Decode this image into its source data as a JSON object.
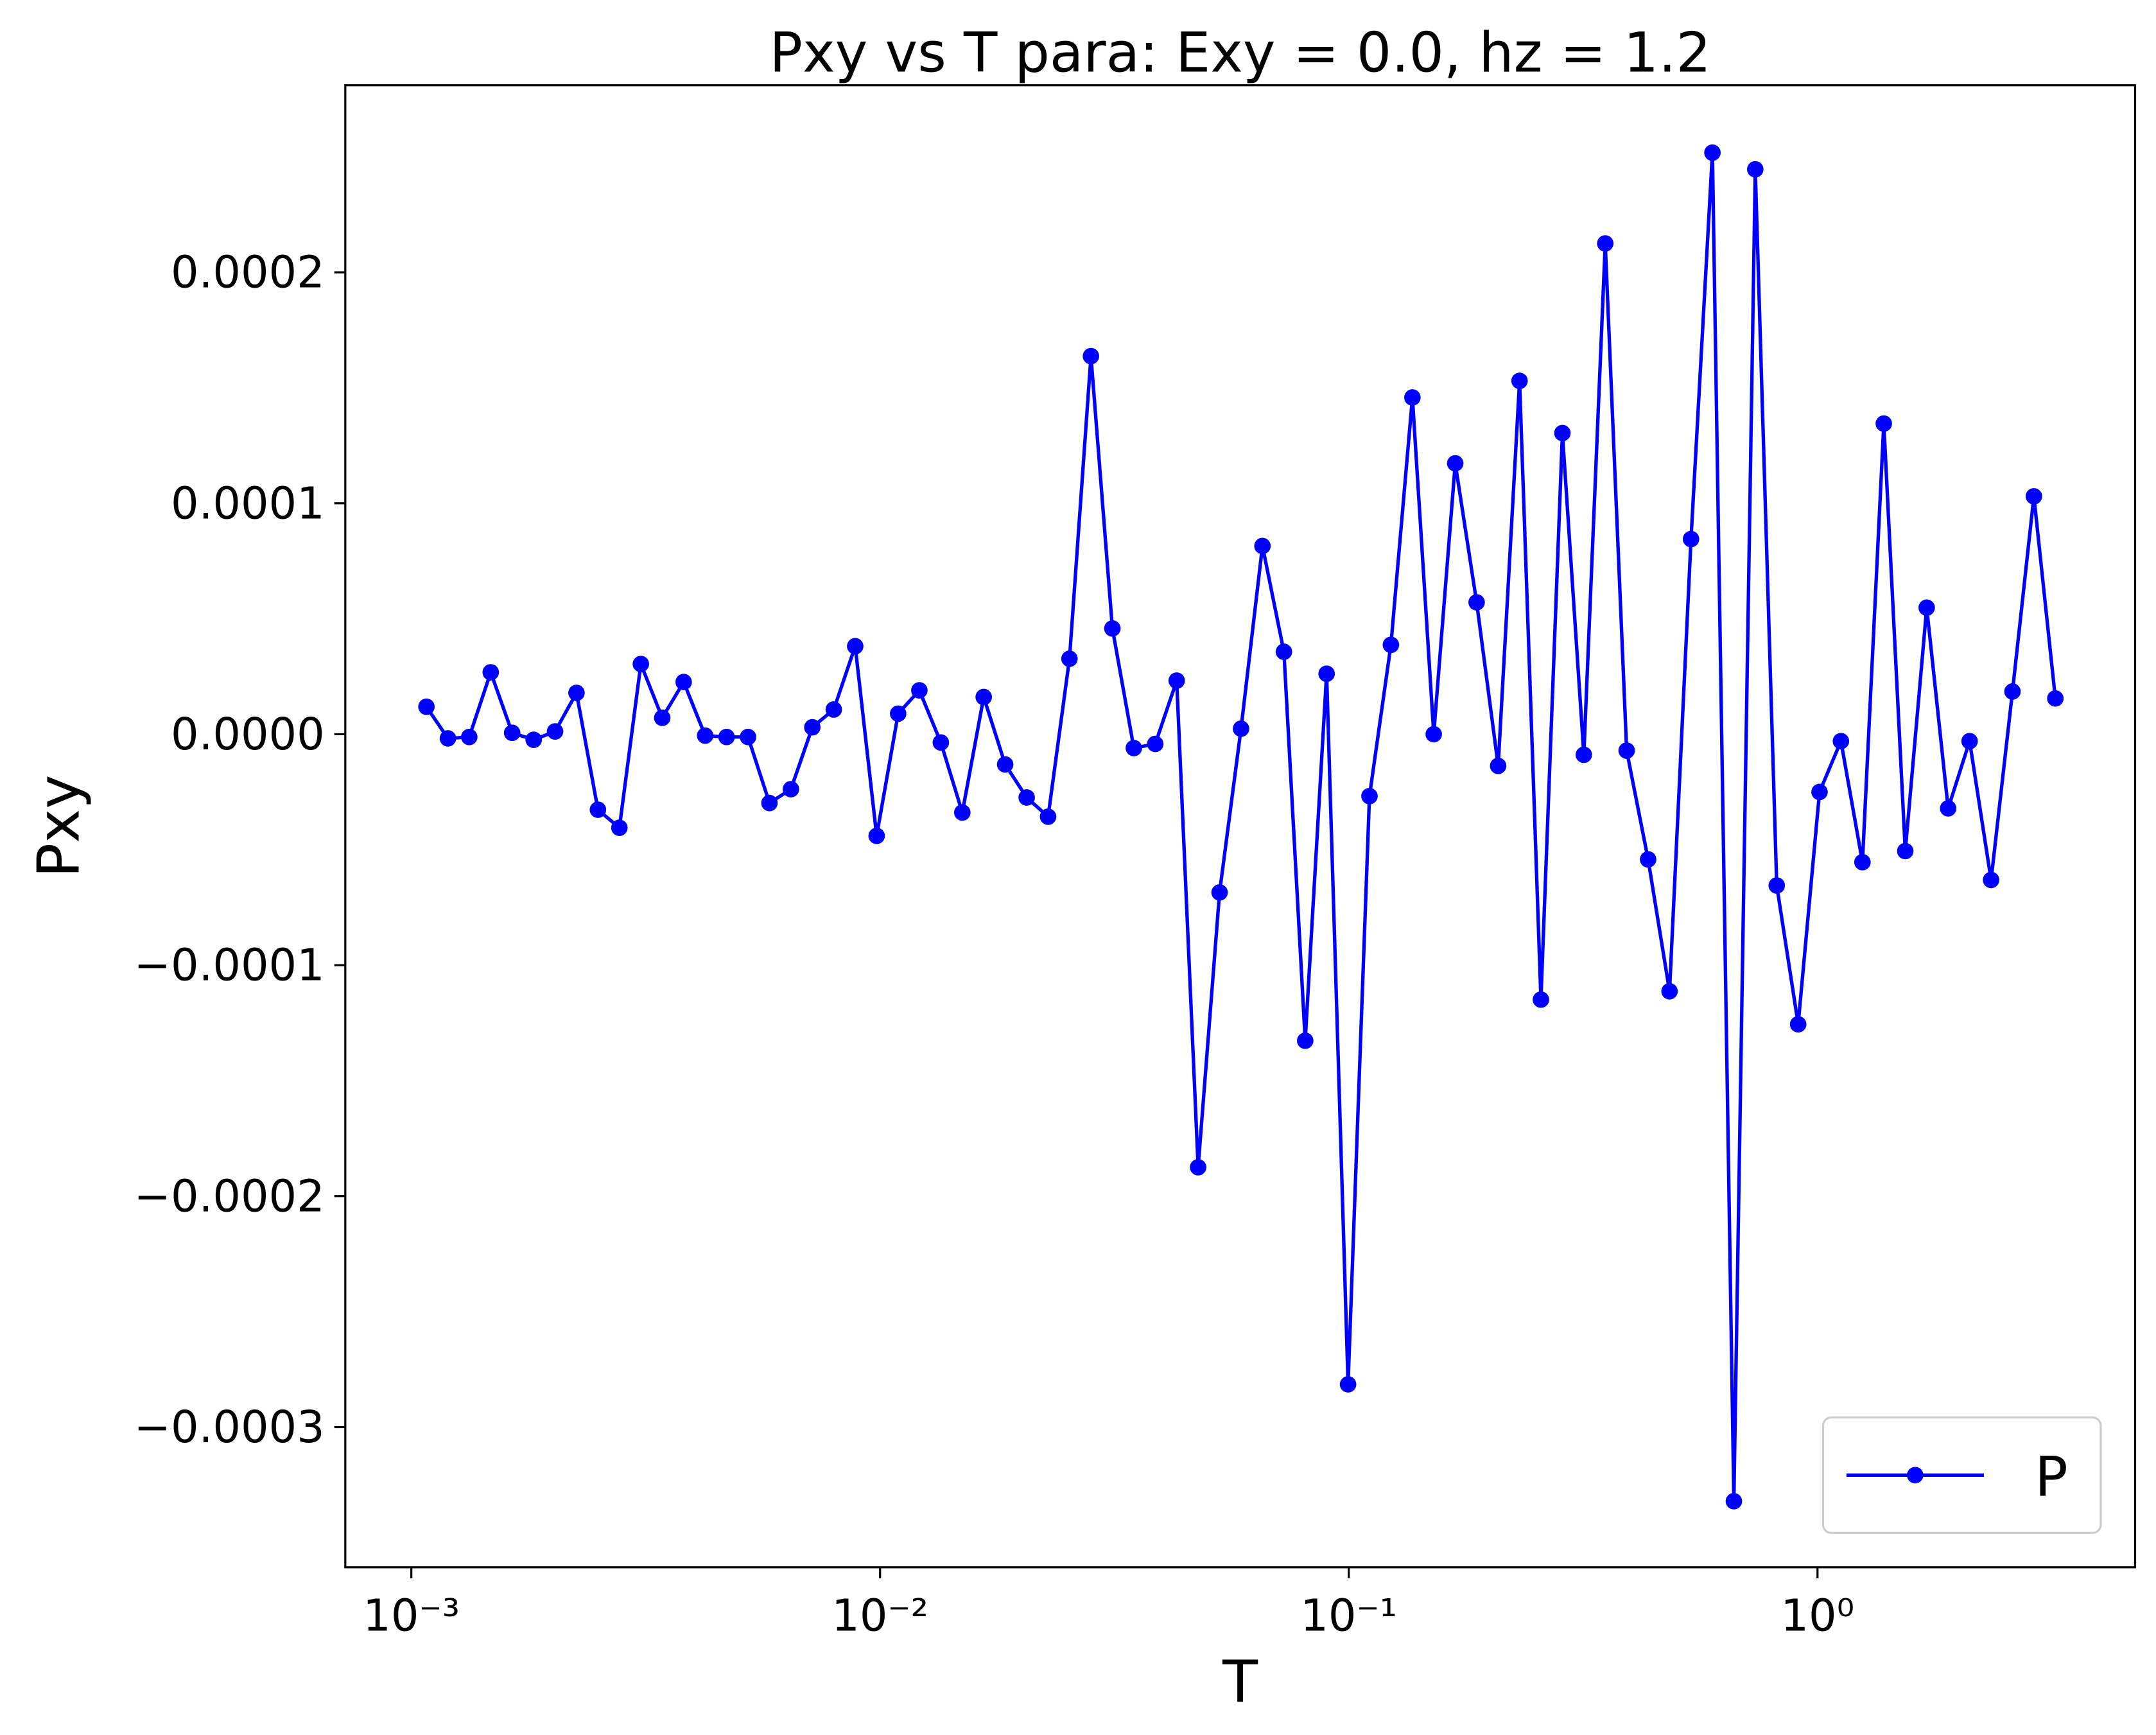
{
  "chart_data": {
    "type": "line",
    "title": "Pxy vs T para: Exy = 0.0, hz = 1.2",
    "xlabel": "T",
    "ylabel": "Pxy",
    "xscale": "log",
    "legend": "lower right",
    "grid": false,
    "xlim": [
      0.000723,
      4.76
    ],
    "ylim": [
      -0.0003607,
      0.000281
    ],
    "xticks": [
      {
        "value": 0.001,
        "label": "10⁻³"
      },
      {
        "value": 0.01,
        "label": "10⁻²"
      },
      {
        "value": 0.1,
        "label": "10⁻¹"
      },
      {
        "value": 1,
        "label": "10⁰"
      }
    ],
    "yticks": [
      {
        "value": -0.0003,
        "label": "−0.0003"
      },
      {
        "value": -0.0002,
        "label": "−0.0002"
      },
      {
        "value": -0.0001,
        "label": "−0.0001"
      },
      {
        "value": 0,
        "label": "0.0000"
      },
      {
        "value": 0.0001,
        "label": "0.0001"
      },
      {
        "value": 0.0002,
        "label": "0.0002"
      }
    ],
    "x": [
      0.001077,
      0.001197,
      0.001329,
      0.001477,
      0.001641,
      0.001824,
      0.002026,
      0.002251,
      0.002501,
      0.002779,
      0.003088,
      0.00343,
      0.003811,
      0.004235,
      0.004705,
      0.005228,
      0.005808,
      0.006454,
      0.00717,
      0.007966,
      0.008851,
      0.009834,
      0.01093,
      0.01213,
      0.01348,
      0.01498,
      0.01664,
      0.01849,
      0.02055,
      0.02283,
      0.02536,
      0.02818,
      0.03131,
      0.03479,
      0.03865,
      0.04294,
      0.04771,
      0.05301,
      0.0589,
      0.06544,
      0.07271,
      0.08073,
      0.08968,
      0.09965,
      0.1107,
      0.123,
      0.1367,
      0.1518,
      0.1687,
      0.1874,
      0.2083,
      0.2314,
      0.257,
      0.2856,
      0.3173,
      0.3525,
      0.3916,
      0.4351,
      0.4834,
      0.5372,
      0.5968,
      0.6631,
      0.7366,
      0.8185,
      0.9094,
      1.01,
      1.122,
      1.247,
      1.385,
      1.539,
      1.71,
      1.9,
      2.111,
      2.346,
      2.606,
      2.895,
      3.217
    ],
    "series": [
      {
        "name": "P",
        "color": "#0000ff",
        "values": [
          1.19e-05,
          -1.8e-06,
          -1.2e-06,
          2.68e-05,
          6e-07,
          -2.4e-06,
          1.2e-06,
          1.79e-05,
          -3.27e-05,
          -4.05e-05,
          3.04e-05,
          7.1e-06,
          2.26e-05,
          -6e-07,
          -1.2e-06,
          -1.2e-06,
          -2.98e-05,
          -2.38e-05,
          3e-06,
          1.07e-05,
          3.81e-05,
          -4.4e-05,
          8.9e-06,
          1.9e-05,
          -3.6e-06,
          -3.39e-05,
          1.61e-05,
          -1.31e-05,
          -2.74e-05,
          -3.57e-05,
          3.27e-05,
          0.0001637,
          4.58e-05,
          -6e-06,
          -4.2e-06,
          2.32e-05,
          -0.0001875,
          -6.85e-05,
          2.4e-06,
          8.15e-05,
          3.57e-05,
          -0.0001327,
          2.62e-05,
          -0.0002815,
          -2.68e-05,
          3.87e-05,
          0.0001458,
          0,
          0.0001173,
          5.71e-05,
          -1.37e-05,
          0.000153,
          -0.0001149,
          0.0001304,
          -8.9e-06,
          0.0002125,
          -7.1e-06,
          -5.42e-05,
          -0.0001113,
          8.45e-05,
          0.0002518,
          -0.0003321,
          0.0002446,
          -6.55e-05,
          -0.0001256,
          -2.5e-05,
          -3e-06,
          -5.54e-05,
          0.0001345,
          -5.06e-05,
          5.48e-05,
          -3.21e-05,
          -3e-06,
          -6.31e-05,
          1.85e-05,
          0.000103,
          1.55e-05
        ]
      }
    ]
  }
}
